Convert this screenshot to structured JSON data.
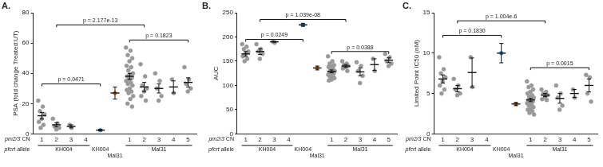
{
  "chart_data": [
    {
      "type": "scatter",
      "title": "A.",
      "ylabel": "PSA (fold change Treated:UT)",
      "xlabel": "pm2/3 CN",
      "group_label": "pfcrt allele",
      "categories": [
        "1",
        "2",
        "3",
        "4",
        null,
        null,
        "1",
        "2",
        "3",
        "4",
        "5"
      ],
      "groups": [
        {
          "label": "KH004",
          "span": 4
        },
        {
          "label": "KH004",
          "span": 1
        },
        {
          "label": "Mal31",
          "span": 1
        },
        {
          "label": "Mal31",
          "span": 5
        }
      ],
      "colors": [
        "#999999",
        "#999999",
        "#999999",
        "#999999",
        "#4a90c9",
        "#dc7f2a",
        "#999999",
        "#999999",
        "#999999",
        "#999999",
        "#999999"
      ],
      "values": [
        [
          22,
          18,
          15,
          13,
          10,
          8,
          6,
          4
        ],
        [
          10,
          7,
          5,
          4,
          3
        ],
        [
          6,
          4
        ],
        [],
        [
          2.5
        ],
        [
          27
        ],
        [
          57,
          55,
          52,
          50,
          48,
          45,
          44,
          42,
          40,
          39,
          38,
          37,
          36,
          35,
          34,
          33,
          32,
          30,
          29,
          28,
          27,
          25,
          23,
          20,
          18
        ],
        [
          46,
          38,
          32,
          30,
          28,
          25,
          22
        ],
        [
          40,
          35,
          30,
          25,
          22
        ],
        [
          36,
          27
        ],
        [
          44,
          36,
          33,
          30,
          28
        ]
      ],
      "means": [
        12,
        6,
        5,
        null,
        2.5,
        27,
        38,
        31,
        30,
        31,
        34
      ],
      "errors": [
        2.2,
        1.3,
        1,
        null,
        0.5,
        4,
        2,
        3,
        3,
        4,
        3
      ],
      "ylim": [
        0,
        80
      ],
      "yticks": [
        0,
        20,
        40,
        60,
        80
      ],
      "grid": false,
      "annotations": [
        {
          "text": "p = 0.0471",
          "from": 0,
          "to": 4,
          "y": 33
        },
        {
          "text": "p = 2.177e-13",
          "from": 1,
          "to": 7,
          "y": 72
        },
        {
          "text": "p = 0.1823",
          "from": 6,
          "to": 10,
          "y": 62
        }
      ]
    },
    {
      "type": "scatter",
      "title": "B.",
      "ylabel": "AUC",
      "xlabel": "pm2/3 CN",
      "group_label": "pfcrt allele",
      "categories": [
        "1",
        "2",
        "3",
        "4",
        null,
        null,
        "1",
        "2",
        "3",
        "4",
        "5"
      ],
      "groups": [
        {
          "label": "KH004",
          "span": 4
        },
        {
          "label": "KH004",
          "span": 1
        },
        {
          "label": "Mal31",
          "span": 1
        },
        {
          "label": "Mal31",
          "span": 5
        }
      ],
      "colors": [
        "#999999",
        "#999999",
        "#999999",
        "#999999",
        "#4a90c9",
        "#dc7f2a",
        "#999999",
        "#999999",
        "#999999",
        "#999999",
        "#999999"
      ],
      "values": [
        [
          185,
          180,
          175,
          170,
          165,
          160,
          155,
          150
        ],
        [
          185,
          175,
          170,
          165,
          155
        ],
        [
          190,
          188
        ],
        [],
        [
          225
        ],
        [
          136
        ],
        [
          160,
          150,
          145,
          142,
          140,
          138,
          135,
          132,
          130,
          128,
          126,
          125,
          124,
          122,
          120,
          118,
          115,
          112,
          110
        ],
        [
          150,
          145,
          142,
          140,
          138,
          135,
          130
        ],
        [
          148,
          140,
          130,
          120,
          105
        ],
        [
          155,
          130
        ],
        [
          165,
          158,
          150,
          145,
          140
        ]
      ],
      "means": [
        165,
        170,
        190,
        null,
        225,
        136,
        129,
        140,
        128,
        143,
        152
      ],
      "errors": [
        5,
        6,
        1,
        null,
        3,
        4,
        3,
        3,
        8,
        12,
        5
      ],
      "ylim": [
        0,
        250
      ],
      "yticks": [
        0,
        50,
        100,
        150,
        200,
        250
      ],
      "grid": false,
      "annotations": [
        {
          "text": "p = 0.0249",
          "from": 0,
          "to": 4,
          "y": 195
        },
        {
          "text": "p = 1.039e-08",
          "from": 1,
          "to": 7,
          "y": 236
        },
        {
          "text": "p = 0.0388",
          "from": 6,
          "to": 10,
          "y": 170
        }
      ]
    },
    {
      "type": "scatter",
      "title": "C.",
      "ylabel": "Limited Point IC50 (nM)",
      "xlabel": "pm2/3 CN",
      "group_label": "pfcrt allele",
      "categories": [
        "1",
        "2",
        "3",
        "4",
        null,
        null,
        "1",
        "2",
        "3",
        "4",
        "5"
      ],
      "groups": [
        {
          "label": "KH004",
          "span": 4
        },
        {
          "label": "KH004",
          "span": 1
        },
        {
          "label": "Mal31",
          "span": 1
        },
        {
          "label": "Mal31",
          "span": 5
        }
      ],
      "colors": [
        "#999999",
        "#999999",
        "#999999",
        "#999999",
        "#4a90c9",
        "#dc7f2a",
        "#999999",
        "#999999",
        "#999999",
        "#999999",
        "#999999"
      ],
      "values": [
        [
          9.5,
          8,
          7.5,
          7,
          6.5,
          6,
          5.5,
          5
        ],
        [
          6.8,
          6,
          5.5,
          5,
          4.8
        ],
        [
          9.5,
          5.8
        ],
        [],
        [
          10
        ],
        [
          3.7
        ],
        [
          6.5,
          6,
          5.8,
          5.5,
          5.2,
          5,
          4.8,
          4.6,
          4.5,
          4.3,
          4.2,
          4,
          3.9,
          3.8,
          3.6,
          3.5,
          3.3,
          3.1,
          3,
          2.8,
          2.6,
          2.4
        ],
        [
          5.5,
          5.2,
          5,
          4.8,
          4.6,
          4.3,
          4.2
        ],
        [
          6,
          5,
          4.5,
          3.5,
          3
        ],
        [
          5.5,
          4.5
        ],
        [
          7.3,
          7,
          5,
          4
        ]
      ],
      "means": [
        6.8,
        5.6,
        7.6,
        null,
        10,
        3.7,
        4.2,
        4.8,
        4.4,
        5,
        6
      ],
      "errors": [
        0.5,
        0.4,
        1.8,
        null,
        1.2,
        0.2,
        0.2,
        0.2,
        0.6,
        0.5,
        0.8
      ],
      "ylim": [
        0,
        15
      ],
      "yticks": [
        0,
        5,
        10,
        15
      ],
      "grid": false,
      "annotations": [
        {
          "text": "p = 0.1830",
          "from": 0,
          "to": 4,
          "y": 12.2
        },
        {
          "text": "p = 1.004e-6",
          "from": 1,
          "to": 7,
          "y": 14
        },
        {
          "text": "p = 0.0015",
          "from": 6,
          "to": 10,
          "y": 8.2
        }
      ]
    }
  ]
}
